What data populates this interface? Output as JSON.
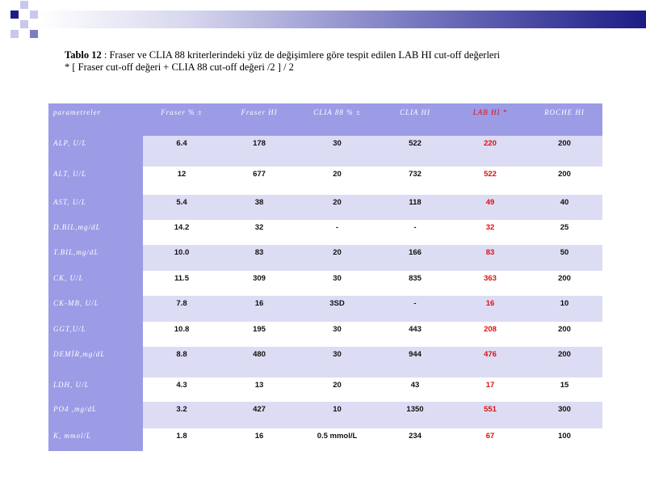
{
  "caption": {
    "label": "Tablo 12",
    "line1": " : Fraser ve CLIA 88 kriterlerindeki yüz de değişimlere göre tespit edilen  LAB HI cut-off değerleri",
    "line2": "* [ Fraser cut-off değeri + CLIA 88 cut-off değeri /2 ]  / 2"
  },
  "table": {
    "headers": [
      "parametreler",
      "Fraser  % ±",
      "Fraser HI",
      "CLIA 88 % ±",
      "CLIA  HI",
      "LAB HI *",
      "ROCHE HI"
    ],
    "rows": [
      {
        "label": "ALP,  U/L",
        "cells": [
          "6.4",
          "178",
          "30",
          "522",
          "220",
          "200"
        ]
      },
      {
        "label": "ALT,  U/L",
        "cells": [
          "12",
          "677",
          "20",
          "732",
          "522",
          "200"
        ]
      },
      {
        "label": "AST,  U/L",
        "cells": [
          "5.4",
          "38",
          "20",
          "118",
          "49",
          "40"
        ]
      },
      {
        "label": "D.BIL,mg/dL",
        "cells": [
          "14.2",
          "32",
          "-",
          "-",
          "32",
          "25"
        ]
      },
      {
        "label": "T.BIL,mg/dL",
        "cells": [
          "10.0",
          "83",
          "20",
          "166",
          "83",
          "50"
        ]
      },
      {
        "label": "CK,  U/L",
        "cells": [
          "11.5",
          "309",
          "30",
          "835",
          "363",
          "200"
        ]
      },
      {
        "label": "CK-MB,  U/L",
        "cells": [
          "7.8",
          "16",
          "3SD",
          "-",
          "16",
          "10"
        ]
      },
      {
        "label": "GGT,U/L",
        "cells": [
          "10.8",
          "195",
          "30",
          "443",
          "208",
          "200"
        ]
      },
      {
        "label": "DEMİR,mg/dL",
        "cells": [
          "8.8",
          "480",
          "30",
          "944",
          "476",
          "200"
        ]
      },
      {
        "label": "LDH,  U/L",
        "cells": [
          "4.3",
          "13",
          "20",
          "43",
          "17",
          "15"
        ]
      },
      {
        "label": "PO4 ,mg/dL",
        "cells": [
          "3.2",
          "427",
          "10",
          "1350",
          "551",
          "300"
        ]
      },
      {
        "label": "K, mmol/L",
        "cells": [
          "1.8",
          "16",
          "0.5 mmol/L",
          "234",
          "67",
          "100"
        ]
      }
    ]
  },
  "colors": {
    "header_bg": "#9b9be6",
    "row_alt": "#dcdcf4",
    "highlight": "#dd1111"
  }
}
